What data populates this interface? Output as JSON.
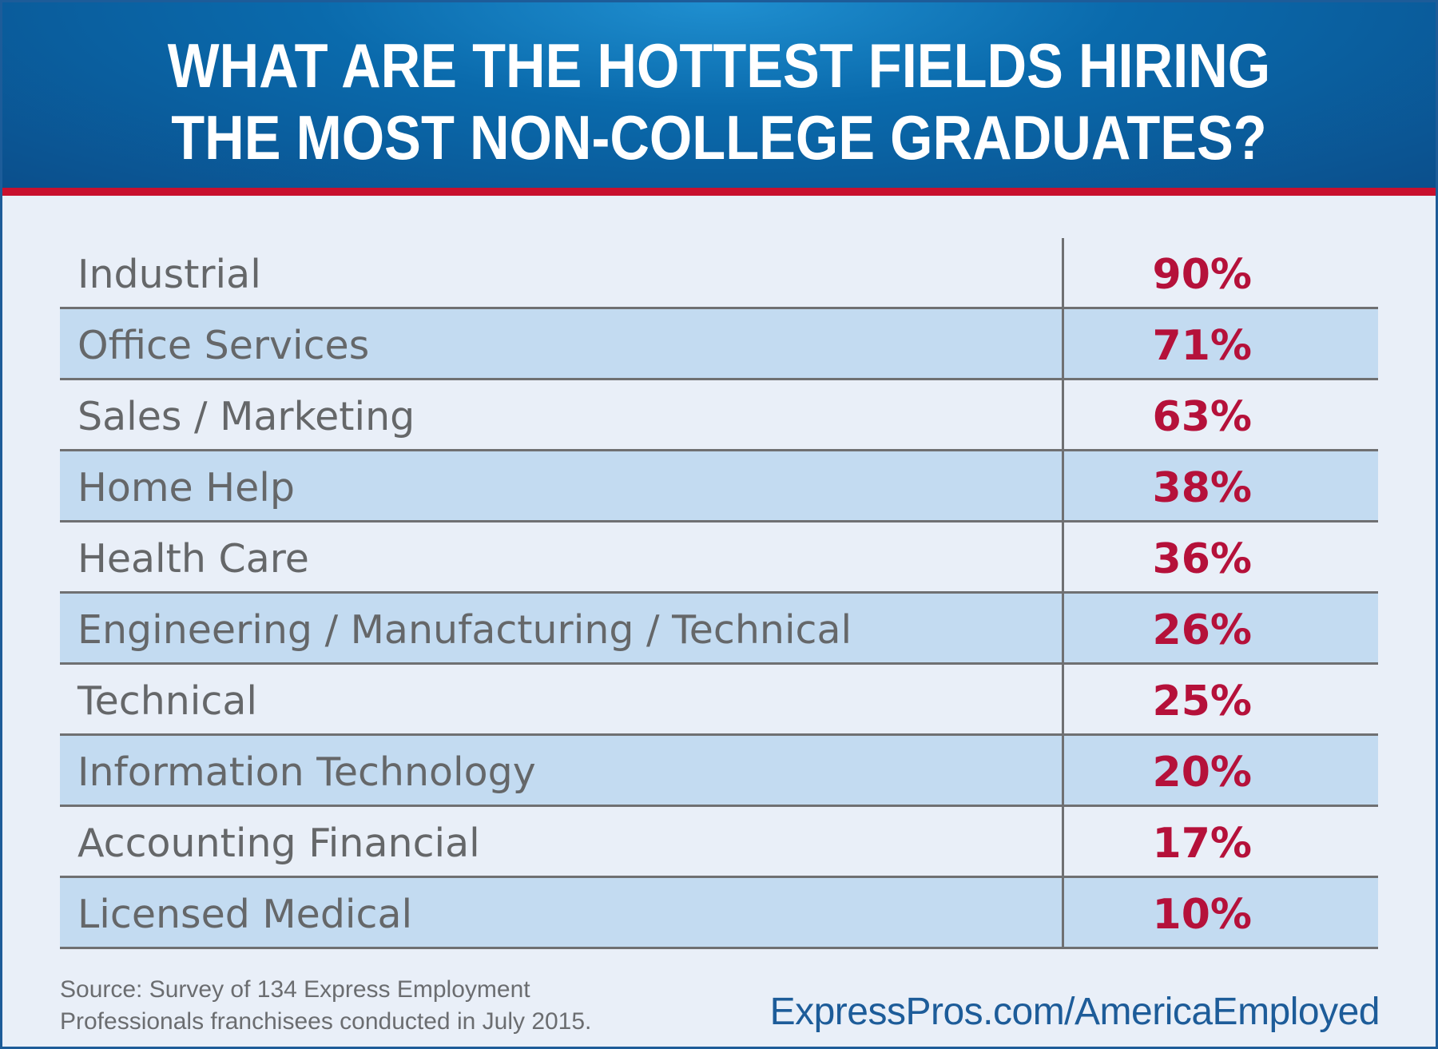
{
  "title": {
    "line1": "WHAT ARE THE HOTTEST FIELDS HIRING",
    "line2": "THE MOST NON-COLLEGE GRADUATES?"
  },
  "colors": {
    "header_blue": "#0a6aac",
    "accent_red": "#c8102e",
    "value_red": "#b5113a",
    "row_shade": "#c3dbf1",
    "background": "#e9eff8"
  },
  "chart_data": {
    "type": "table",
    "title": "WHAT ARE THE HOTTEST FIELDS HIRING THE MOST NON-COLLEGE GRADUATES?",
    "rows": [
      {
        "field": "Industrial",
        "value": "90%"
      },
      {
        "field": "Office Services",
        "value": "71%"
      },
      {
        "field": "Sales / Marketing",
        "value": "63%"
      },
      {
        "field": "Home Help",
        "value": "38%"
      },
      {
        "field": "Health Care",
        "value": "36%"
      },
      {
        "field": "Engineering / Manufacturing / Technical",
        "value": "26%"
      },
      {
        "field": "Technical",
        "value": "25%"
      },
      {
        "field": "Information Technology",
        "value": "20%"
      },
      {
        "field": "Accounting Financial",
        "value": "17%"
      },
      {
        "field": "Licensed Medical",
        "value": "10%"
      }
    ]
  },
  "footer": {
    "source_line1": "Source: Survey of 134 Express Employment",
    "source_line2": "Professionals franchisees conducted in July 2015.",
    "url": "ExpressPros.com/AmericaEmployed"
  }
}
